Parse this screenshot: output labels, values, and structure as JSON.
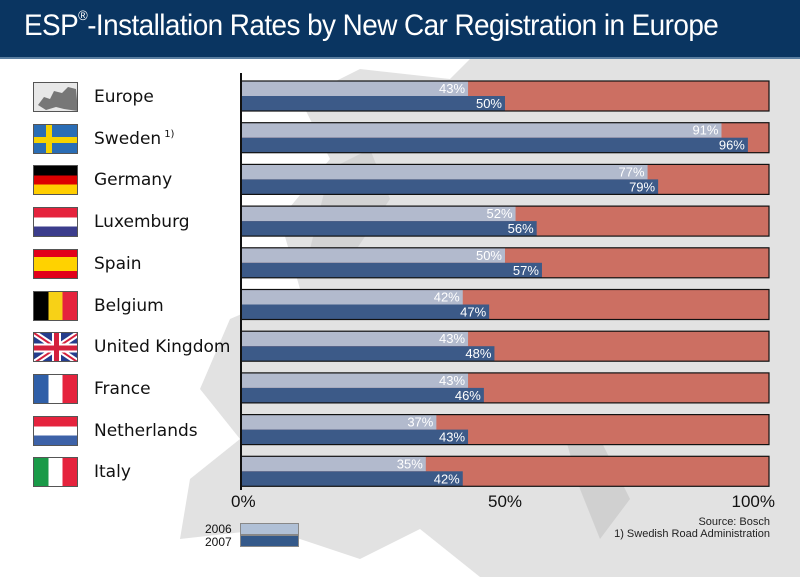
{
  "header": {
    "title_main": "ESP",
    "title_reg": "®",
    "title_rest": "-Installation Rates by New Car Registration in Europe"
  },
  "colors": {
    "header_bg": "#0a3561",
    "bar_2006": "#b0c0d6",
    "bar_2007": "#34598a",
    "remainder": "#cc6f62"
  },
  "footnotes": {
    "source": "Source: Bosch",
    "note1": "1) Swedish Road Administration"
  },
  "chart_data": {
    "type": "bar",
    "orientation": "horizontal",
    "title": "ESP®-Installation Rates by New Car Registration in Europe",
    "xlabel": "",
    "ylabel": "",
    "xlim": [
      0,
      100
    ],
    "x_ticks": [
      "0%",
      "50%",
      "100%"
    ],
    "categories": [
      "Europe",
      "Sweden",
      "Germany",
      "Luxemburg",
      "Spain",
      "Belgium",
      "United Kingdom",
      "France",
      "Netherlands",
      "Italy"
    ],
    "category_notes": [
      "",
      "1)",
      "",
      "",
      "",
      "",
      "",
      "",
      "",
      ""
    ],
    "flag_icons": [
      "europe-map-icon",
      "sweden-flag-icon",
      "germany-flag-icon",
      "luxembourg-flag-icon",
      "spain-flag-icon",
      "belgium-flag-icon",
      "uk-flag-icon",
      "france-flag-icon",
      "netherlands-flag-icon",
      "italy-flag-icon"
    ],
    "series": [
      {
        "name": "2006",
        "values": [
          43,
          91,
          77,
          52,
          50,
          42,
          43,
          43,
          37,
          35
        ]
      },
      {
        "name": "2007",
        "values": [
          50,
          96,
          79,
          56,
          57,
          47,
          48,
          46,
          43,
          42
        ]
      }
    ],
    "value_labels_suffix": "%",
    "legend": {
      "entries": [
        "2006",
        "2007"
      ],
      "placement": "bottom-left"
    },
    "grid": false
  }
}
